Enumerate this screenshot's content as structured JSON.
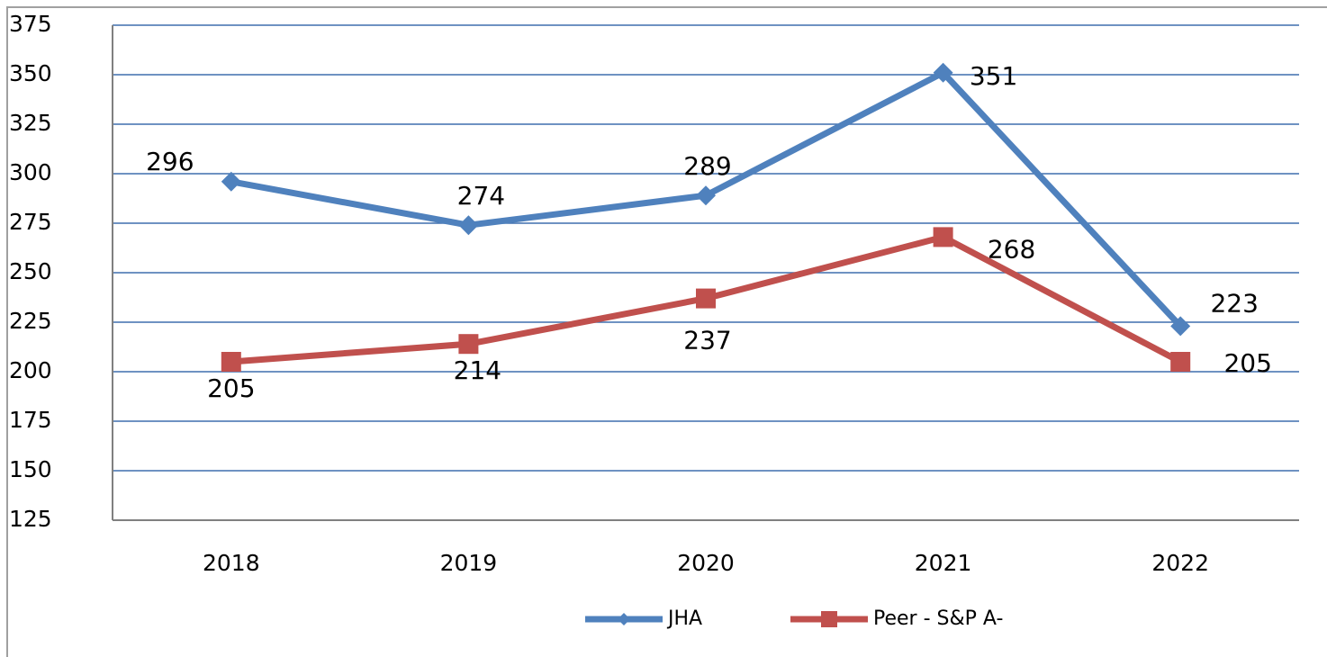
{
  "chart_data": {
    "type": "line",
    "categories": [
      "2018",
      "2019",
      "2020",
      "2021",
      "2022"
    ],
    "series": [
      {
        "name": "JHA",
        "color": "#4f81bd",
        "marker": "diamond",
        "values": [
          296,
          274,
          289,
          351,
          223
        ]
      },
      {
        "name": "Peer - S&P A-",
        "color": "#c0504d",
        "marker": "square",
        "values": [
          205,
          214,
          237,
          268,
          205
        ]
      }
    ],
    "ylim": [
      125,
      375
    ],
    "yticks": [
      125,
      150,
      175,
      200,
      225,
      250,
      275,
      300,
      325,
      350,
      375
    ],
    "grid": true,
    "legend": "bottom"
  }
}
